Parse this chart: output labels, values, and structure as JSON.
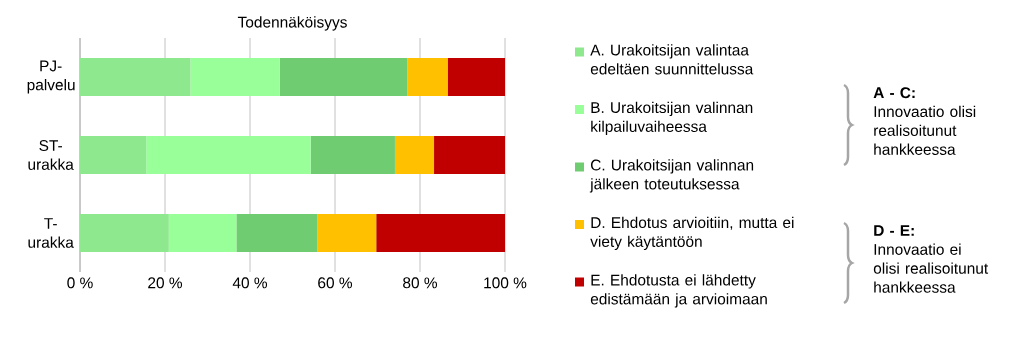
{
  "chart_data": {
    "type": "bar",
    "orientation": "horizontal",
    "stacked": true,
    "title": "Todennäköisyys",
    "categories": [
      "PJ-palvelu",
      "ST-urakka",
      "T-urakka"
    ],
    "series": [
      {
        "name": "A.  Urakoitsijan valintaa edeltäen suunnittelussa",
        "color": "#8ee88e",
        "values": [
          26,
          15.6,
          20.9
        ]
      },
      {
        "name": "B.  Urakoitsijan valinnan kilpailuvaiheessa",
        "color": "#99ff99",
        "values": [
          21,
          38.7,
          15.9
        ]
      },
      {
        "name": "C.  Urakoitsijan valinnan jälkeen toteutuksessa",
        "color": "#70cc70",
        "values": [
          30,
          19.8,
          19.0
        ]
      },
      {
        "name": "D.  Ehdotus arvioitiin, mutta ei viety käytäntöön",
        "color": "#ffc000",
        "values": [
          9.5,
          9.2,
          13.9
        ]
      },
      {
        "name": "E.  Ehdotusta ei lähdetty edistämään ja arvioimaan",
        "color": "#c00000",
        "values": [
          13.5,
          16.7,
          30.3
        ]
      }
    ],
    "xlim": [
      0,
      100
    ],
    "xticks": [
      {
        "value": 0,
        "label": "0 %"
      },
      {
        "value": 20,
        "label": "20 %"
      },
      {
        "value": 40,
        "label": "40 %"
      },
      {
        "value": 60,
        "label": "60 %"
      },
      {
        "value": 80,
        "label": "80 %"
      },
      {
        "value": 100,
        "label": "100 %"
      }
    ],
    "grid": "x",
    "legend": "right",
    "annotations": [
      "A - C:",
      "Innovaatio olisi realisoitunut hankkeessa",
      "D - E:",
      "Innovaatio ei olisi realisoitunut hankkeessa"
    ]
  }
}
